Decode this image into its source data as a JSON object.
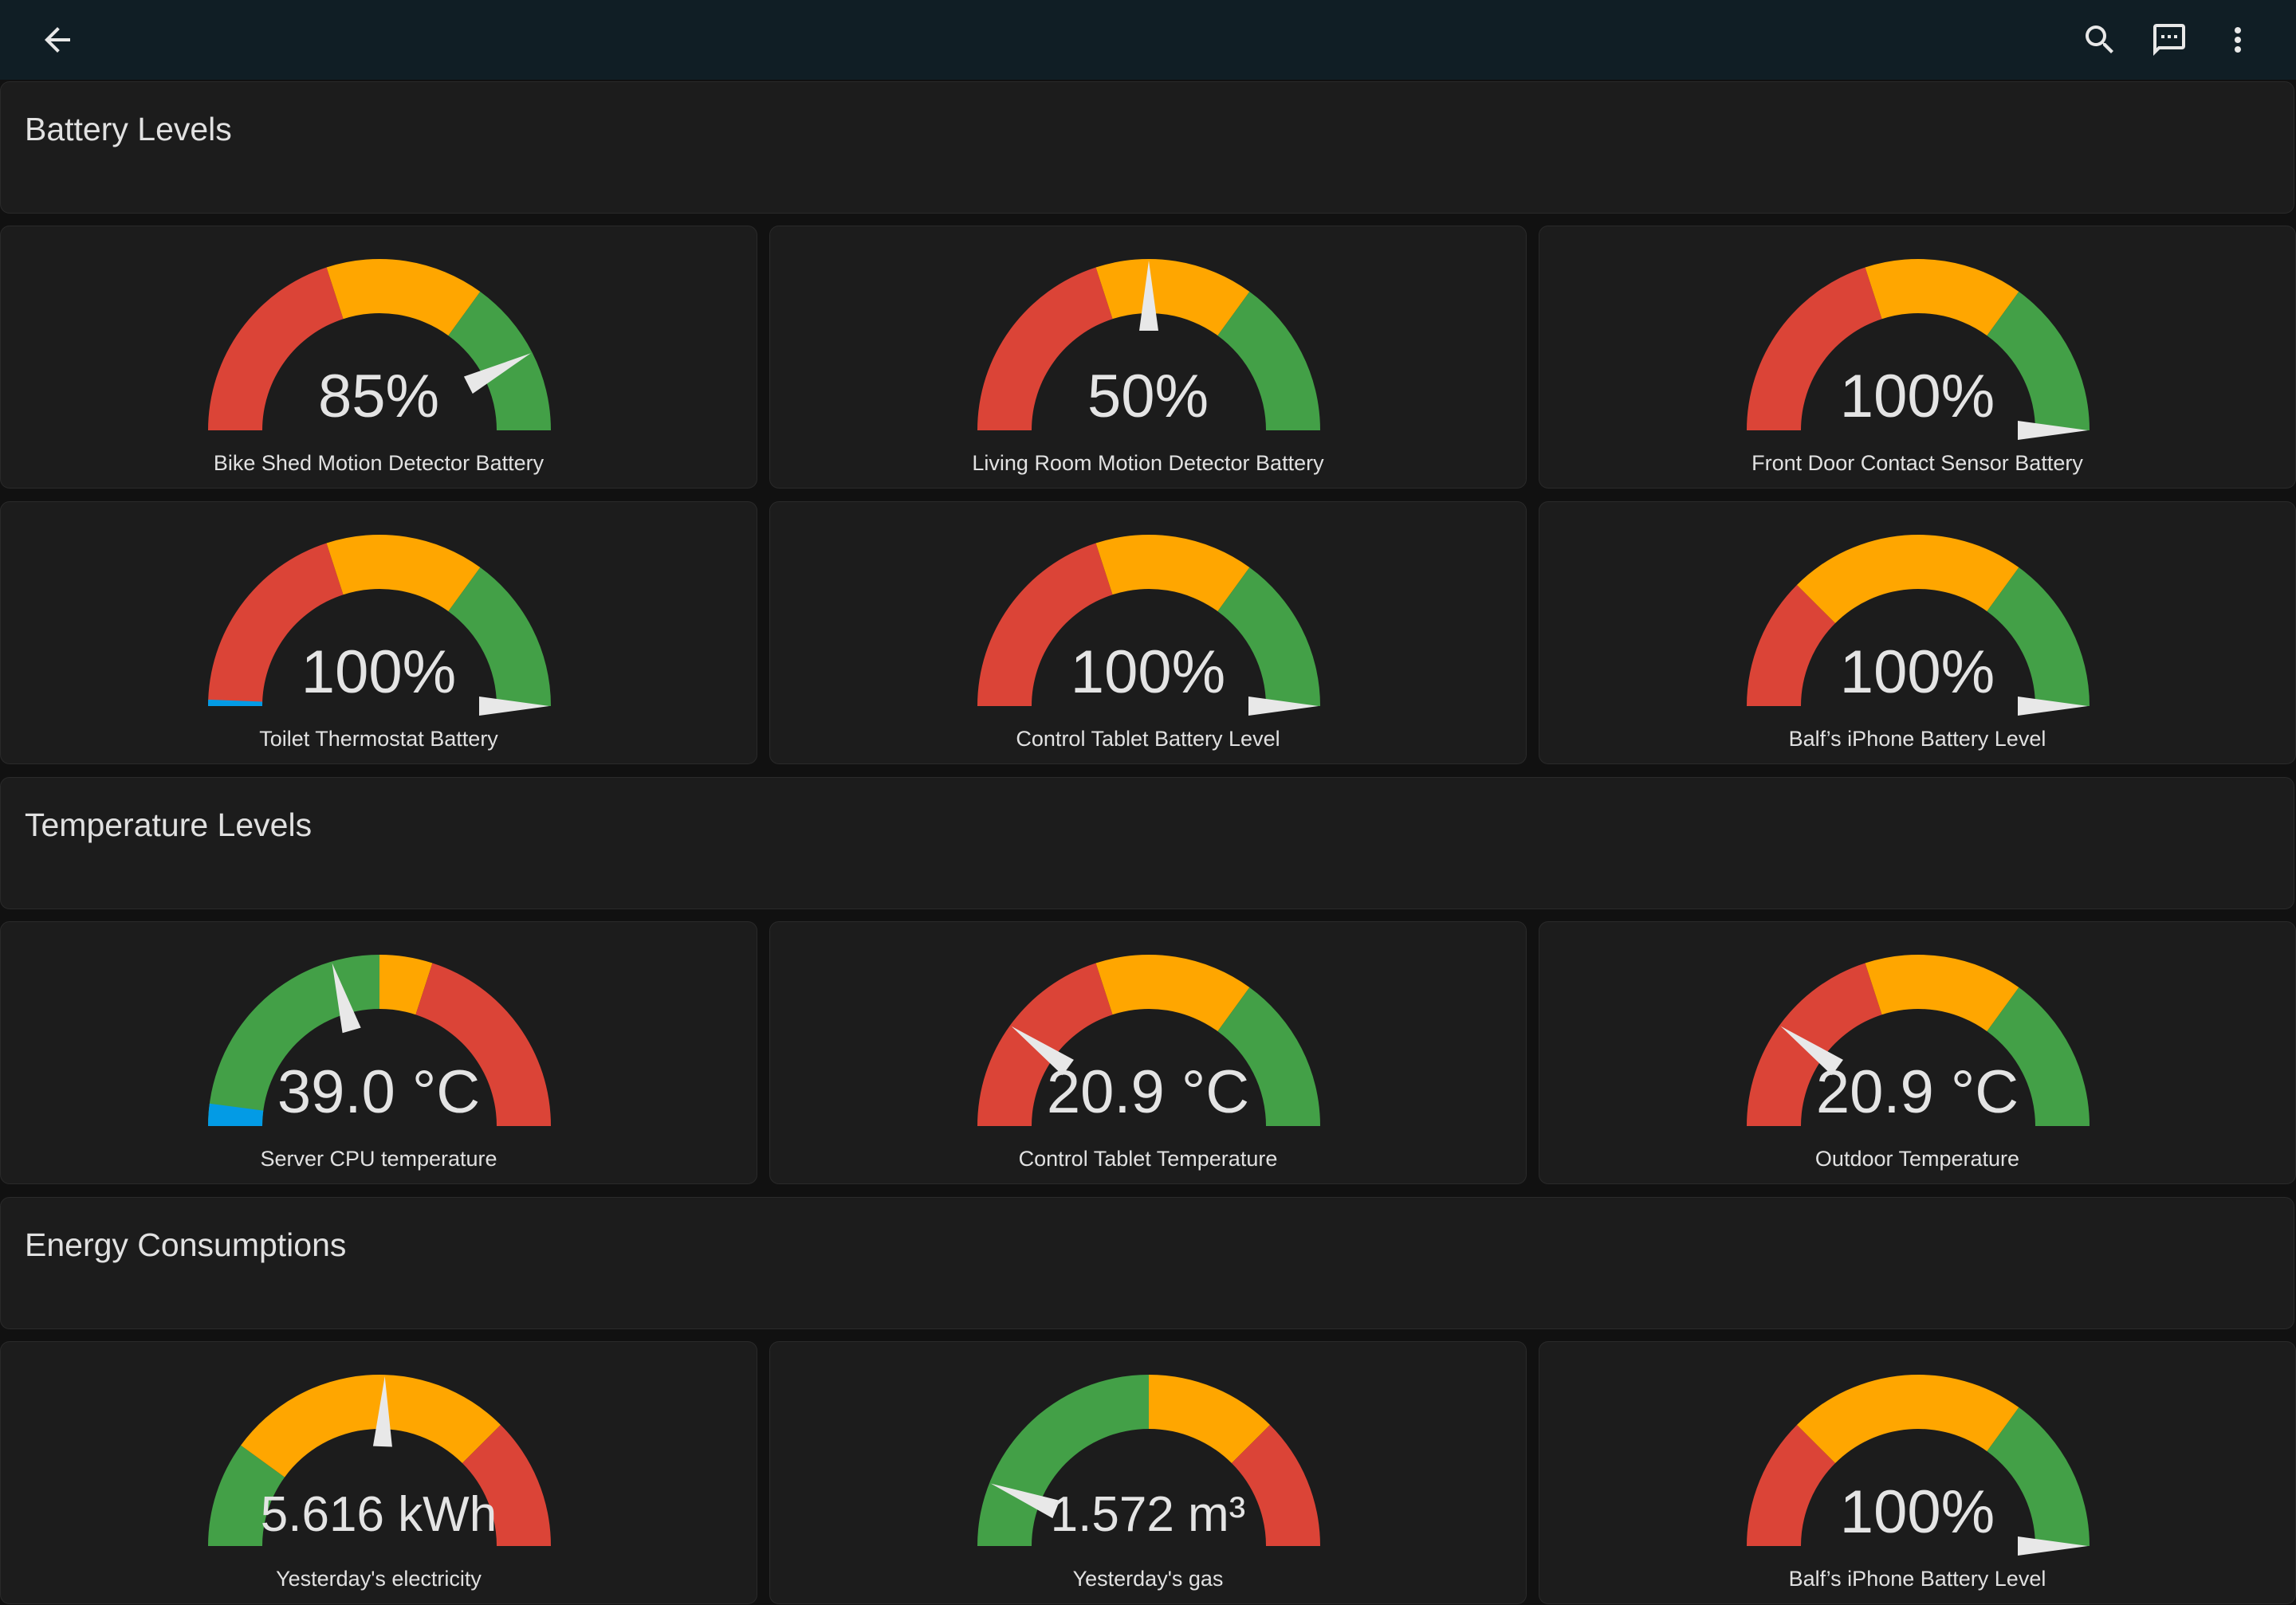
{
  "colors": {
    "red": "#db4437",
    "orange": "#ffa600",
    "green": "#43a047",
    "blue": "#039be5",
    "needle": "#e8e8e8"
  },
  "toolbar": {
    "back_icon": "arrow-left-icon",
    "search_icon": "search-icon",
    "assist_icon": "chat-message-icon",
    "menu_icon": "more-vertical-icon"
  },
  "sections": [
    {
      "title": "Battery Levels"
    },
    {
      "title": "Temperature Levels"
    },
    {
      "title": "Energy Consumptions"
    }
  ],
  "gauges": [
    {
      "display": "85%",
      "label": "Bike Shed Motion Detector Battery",
      "level": 0.85,
      "segments": [
        [
          0,
          0.4,
          "red"
        ],
        [
          0,
          0,
          ""
        ],
        [
          0.4,
          0.7,
          "orange"
        ],
        [
          0.7,
          1,
          "green"
        ]
      ]
    },
    {
      "display": "50%",
      "label": "Living Room Motion Detector Battery",
      "level": 0.5,
      "segments": [
        [
          0,
          0.4,
          "red"
        ],
        [
          0.4,
          0.7,
          "orange"
        ],
        [
          0.7,
          1,
          "green"
        ]
      ]
    },
    {
      "display": "100%",
      "label": "Front Door Contact Sensor Battery",
      "level": 1.0,
      "segments": [
        [
          0,
          0.4,
          "red"
        ],
        [
          0.4,
          0.7,
          "orange"
        ],
        [
          0.7,
          1,
          "green"
        ]
      ]
    },
    {
      "display": "100%",
      "label": "Toilet Thermostat Battery",
      "level": 1.0,
      "blue_base": true,
      "segments": [
        [
          0,
          0.4,
          "red"
        ],
        [
          0.4,
          0.7,
          "orange"
        ],
        [
          0.7,
          1,
          "green"
        ]
      ]
    },
    {
      "display": "100%",
      "label": "Control Tablet Battery Level",
      "level": 1.0,
      "segments": [
        [
          0,
          0.4,
          "red"
        ],
        [
          0.4,
          0.7,
          "orange"
        ],
        [
          0.7,
          1,
          "green"
        ]
      ]
    },
    {
      "display": "100%",
      "label": "Balf’s iPhone Battery Level",
      "level": 1.0,
      "segments": [
        [
          0,
          0.25,
          "red"
        ],
        [
          0.25,
          0.7,
          "orange"
        ],
        [
          0.7,
          1,
          "green"
        ]
      ]
    },
    {
      "display": "39.0 °C",
      "label": "Server CPU temperature",
      "level": 0.41,
      "blue_base": true,
      "segments": [
        [
          0,
          0.5,
          "green"
        ],
        [
          0.5,
          0.6,
          "orange"
        ],
        [
          0.6,
          1,
          "red"
        ]
      ]
    },
    {
      "display": "20.9 °C",
      "label": "Control Tablet Temperature",
      "level": 0.2,
      "segments": [
        [
          0,
          0.4,
          "red"
        ],
        [
          0.4,
          0.7,
          "orange"
        ],
        [
          0.7,
          1,
          "green"
        ]
      ]
    },
    {
      "display": "20.9 °C",
      "label": "Outdoor Temperature",
      "level": 0.2,
      "segments": [
        [
          0,
          0.4,
          "red"
        ],
        [
          0.4,
          0.7,
          "orange"
        ],
        [
          0.7,
          1,
          "green"
        ]
      ]
    },
    {
      "display": "5.616 kWh",
      "label": "Yesterday's electricity",
      "level": 0.51,
      "small": true,
      "segments": [
        [
          0,
          0.2,
          "green"
        ],
        [
          0.2,
          0.75,
          "orange"
        ],
        [
          0.75,
          1,
          "red"
        ]
      ]
    },
    {
      "display": "1.572 m³",
      "label": "Yesterday's gas",
      "level": 0.12,
      "segments": [
        [
          0,
          0.5,
          "green"
        ],
        [
          0.5,
          0.75,
          "orange"
        ],
        [
          0.75,
          1,
          "red"
        ]
      ]
    },
    {
      "display": "100%",
      "label": "Balf’s iPhone Battery Level",
      "level": 1.0,
      "segments": [
        [
          0,
          0.25,
          "red"
        ],
        [
          0.25,
          0.7,
          "orange"
        ],
        [
          0.7,
          1,
          "green"
        ]
      ]
    }
  ]
}
